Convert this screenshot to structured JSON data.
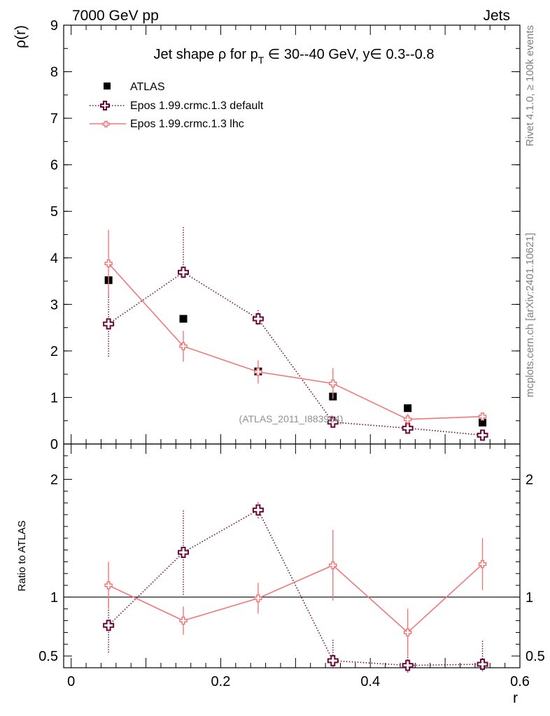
{
  "header": {
    "energy_label": "7000 GeV pp",
    "category_label": "Jets",
    "plot_title_prefix": "Jet shape ρ for p",
    "plot_title_sub": "T",
    "plot_title_suffix": " ∈ 30--40 GeV, y∈ 0.3--0.8",
    "rivet_label": "Rivet 4.1.0, ≥ 100k events",
    "mcplots_label": "mcplots.cern.ch [arXiv:2401.10621]",
    "analysis_label": "(ATLAS_2011_I883984)"
  },
  "legend": [
    {
      "name": "ATLAS",
      "style": "square"
    },
    {
      "name": "Epos 1.99.crmc.1.3 default",
      "style": "dotted-cross"
    },
    {
      "name": "Epos 1.99.crmc.1.3 lhc",
      "style": "solid-cross"
    }
  ],
  "colors": {
    "data": "#000000",
    "default": "#6b0a3a",
    "lhc": "#f07878"
  },
  "chart_data": [
    {
      "type": "scatter",
      "panel": "main",
      "title": "Jet shape ρ for p_T ∈ 30--40 GeV, y∈ 0.3--0.8",
      "xlabel": "r",
      "ylabel": "ρ(r)",
      "xlim": [
        -0.01,
        0.6
      ],
      "ylim": [
        0,
        9
      ],
      "yticks": [
        0,
        1,
        2,
        3,
        4,
        5,
        6,
        7,
        8,
        9
      ],
      "ytick_labels": [
        "0",
        "1",
        "2",
        "3",
        "4",
        "5",
        "6",
        "7",
        "8",
        "9"
      ],
      "x": [
        0.05,
        0.15,
        0.25,
        0.35,
        0.45,
        0.55
      ],
      "series": [
        {
          "name": "ATLAS",
          "values": [
            3.52,
            2.69,
            1.56,
            1.02,
            0.77,
            0.46
          ]
        },
        {
          "name": "Epos 1.99.crmc.1.3 default",
          "values": [
            2.58,
            3.69,
            2.69,
            0.47,
            0.34,
            0.19
          ],
          "err_lo": [
            0.7,
            0,
            0.1,
            0.04,
            0.04,
            0.04
          ],
          "err_hi": [
            0.7,
            0.97,
            0.2,
            0.04,
            0.08,
            0.05
          ]
        },
        {
          "name": "Epos 1.99.crmc.1.3 lhc",
          "values": [
            3.88,
            2.1,
            1.55,
            1.3,
            0.53,
            0.59
          ],
          "err_lo": [
            0.72,
            0.33,
            0.25,
            0.33,
            0.12,
            0.07
          ],
          "err_hi": [
            0.72,
            0.33,
            0.25,
            0.33,
            0.12,
            0.08
          ]
        }
      ]
    },
    {
      "type": "scatter",
      "panel": "ratio",
      "xlabel": "r",
      "ylabel": "Ratio to ATLAS",
      "xlim": [
        -0.01,
        0.6
      ],
      "ylim": [
        0.4,
        2.3
      ],
      "yticks": [
        0.5,
        1,
        2
      ],
      "ytick_labels": [
        "0.5",
        "1",
        "2"
      ],
      "xticks": [
        0,
        0.2,
        0.4,
        0.6
      ],
      "xtick_labels": [
        "0",
        "0.2",
        "0.4",
        "0.6"
      ],
      "reference": 1,
      "x": [
        0.05,
        0.15,
        0.25,
        0.35,
        0.45,
        0.55
      ],
      "series": [
        {
          "name": "Epos 1.99.crmc.1.3 default",
          "values": [
            0.76,
            1.38,
            1.74,
            0.46,
            0.42,
            0.43
          ],
          "err_lo": [
            0.23,
            0.36,
            0.07,
            0.06,
            0.06,
            0.06
          ],
          "err_hi": [
            0.23,
            0.36,
            0.07,
            0.18,
            0.23,
            0.2
          ]
        },
        {
          "name": "Epos 1.99.crmc.1.3 lhc",
          "values": [
            1.1,
            0.8,
            0.99,
            1.27,
            0.7,
            1.28
          ],
          "err_lo": [
            0.2,
            0.12,
            0.13,
            0.3,
            0.2,
            0.22
          ],
          "err_hi": [
            0.2,
            0.12,
            0.13,
            0.3,
            0.2,
            0.22
          ]
        }
      ]
    }
  ]
}
